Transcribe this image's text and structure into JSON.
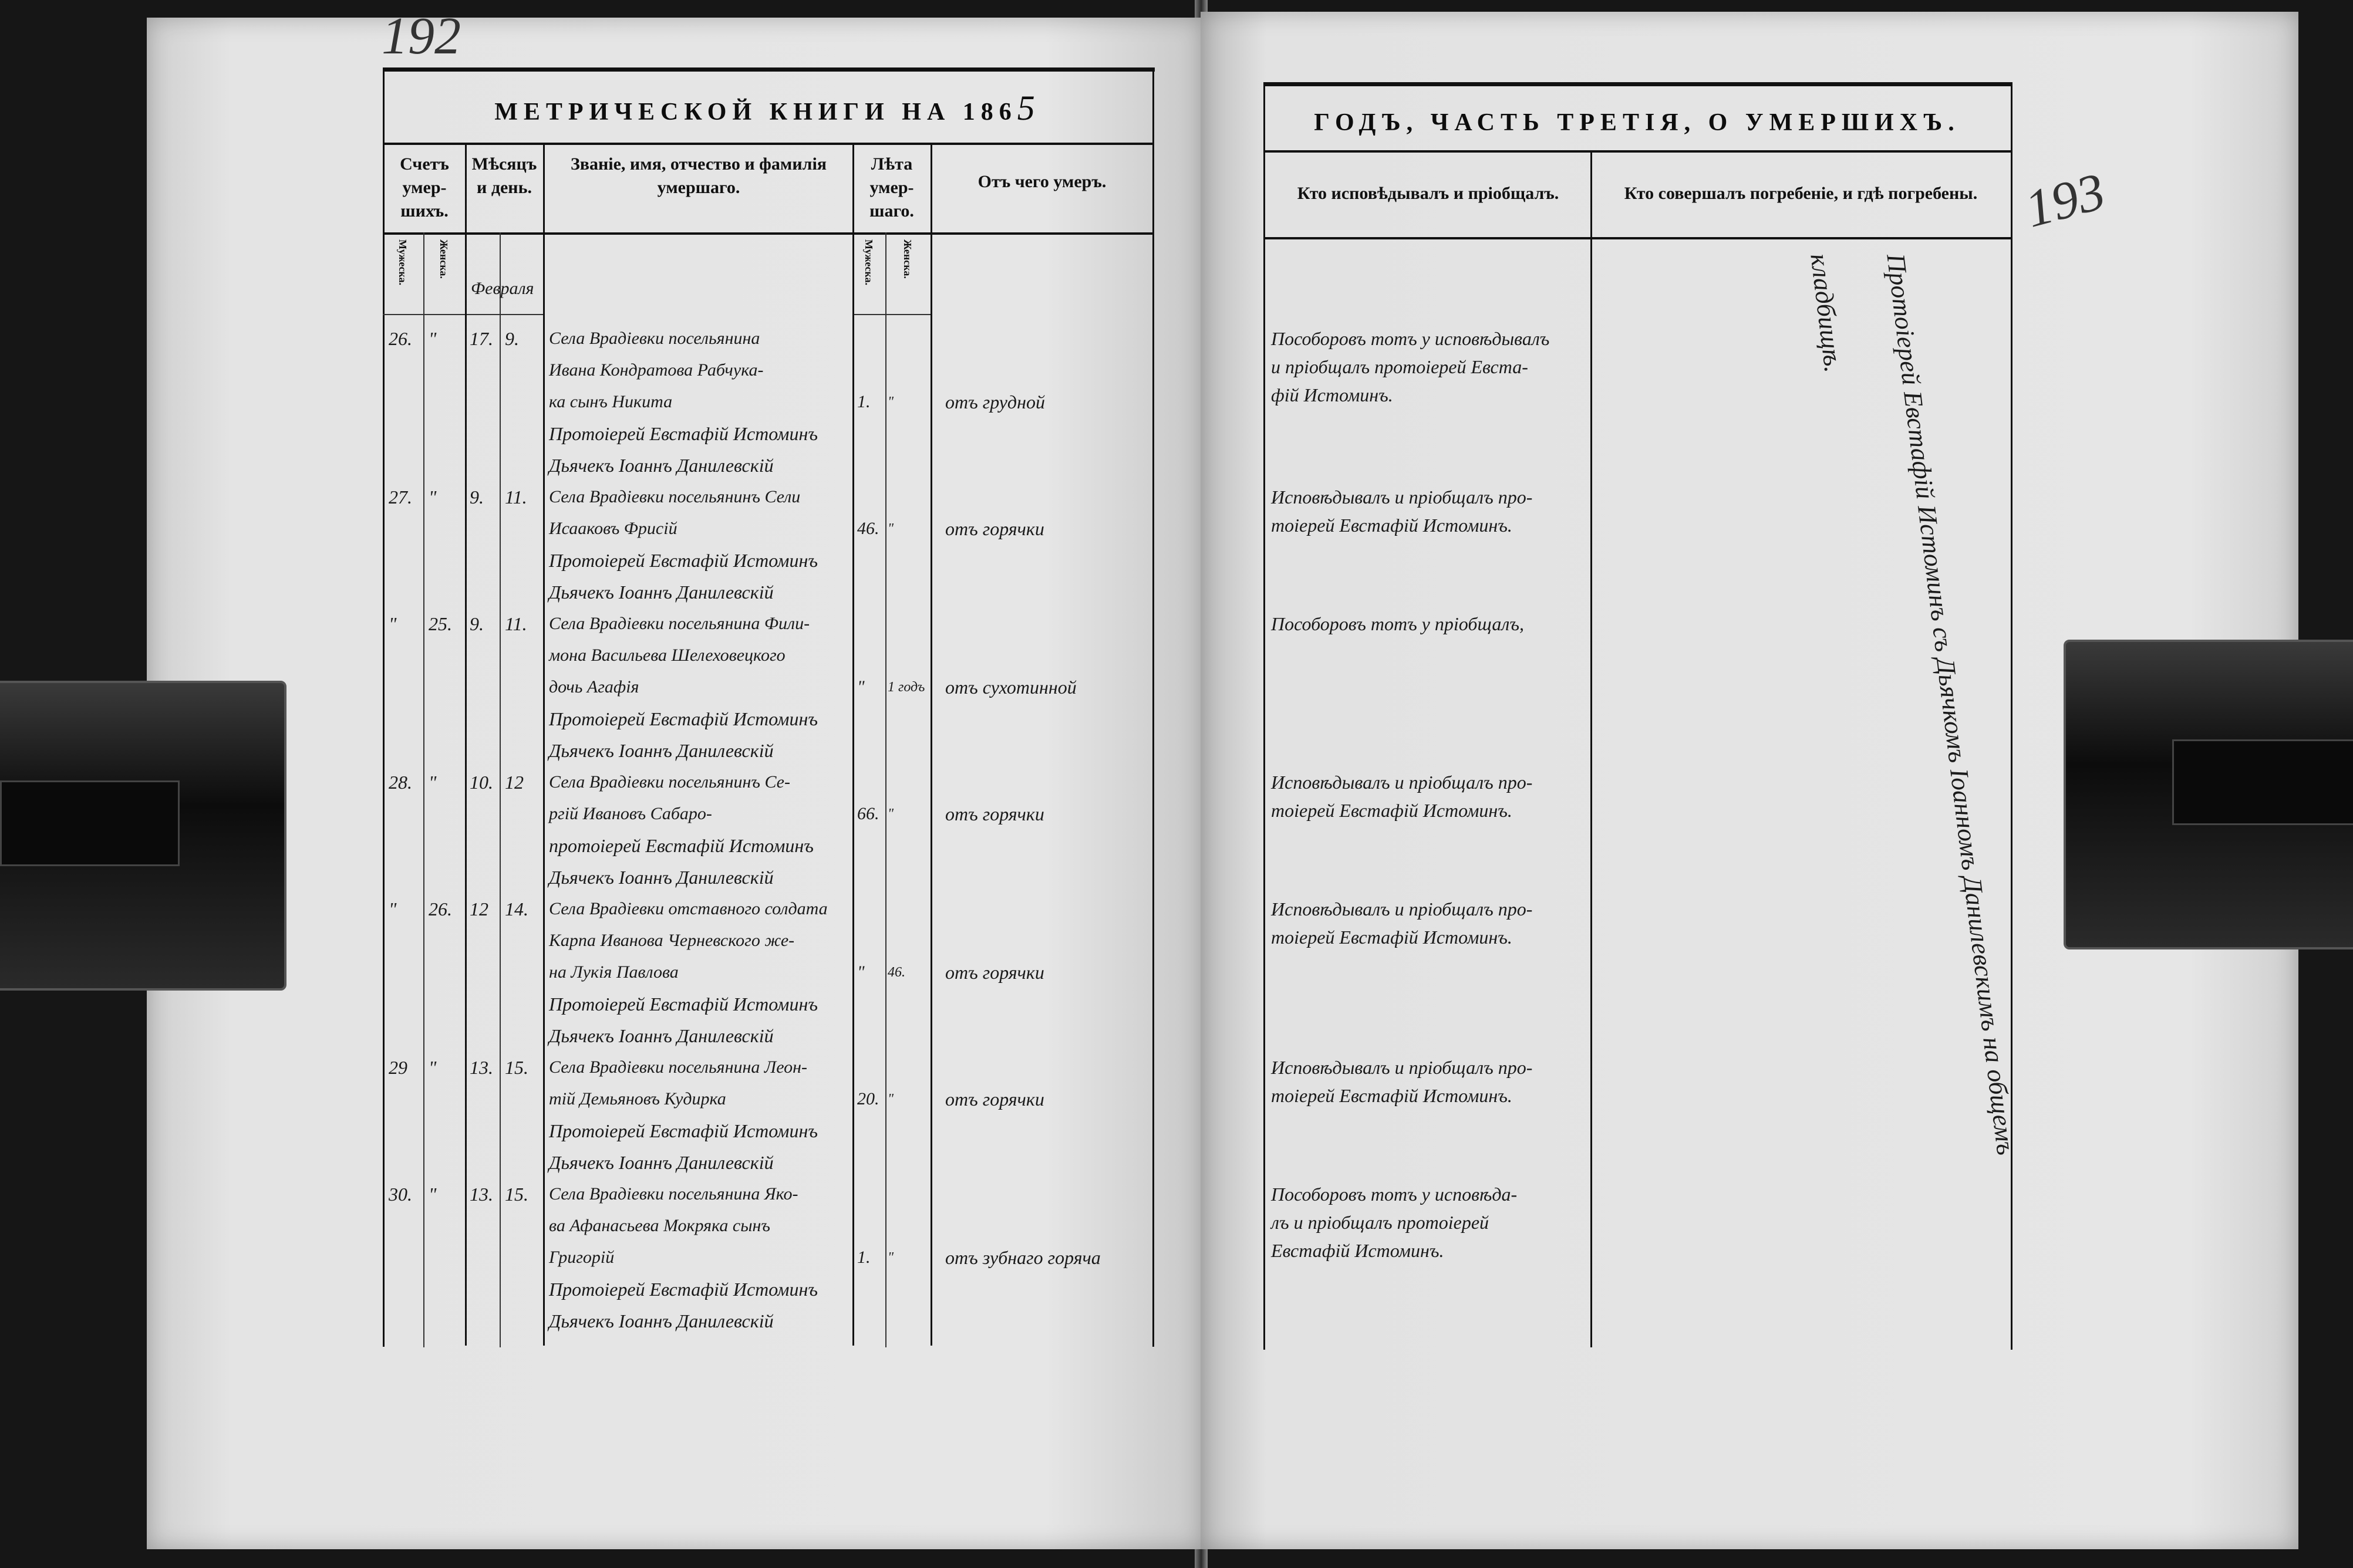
{
  "left_page": {
    "page_number": "192",
    "title": "МЕТРИЧЕСКОЙ КНИГИ НА 186",
    "year_handwritten": "5",
    "headers": {
      "count": "Счетъ умер- шихъ.",
      "month_day": "Мѣсяцъ и день.",
      "name": "Званіе, имя, отчество и фамилія умершаго.",
      "age": "Лѣта умер- шаго.",
      "cause": "Отъ чего умеръ."
    },
    "subheaders": {
      "male": "Мужеска.",
      "female": "Женска.",
      "age_male": "Мужеска.",
      "age_female": "Женска."
    },
    "month": "Февраля",
    "entries": [
      {
        "male": "26.",
        "female": "\"",
        "death_day": "17.",
        "burial_day": "9.",
        "name_lines": [
          "Села Врадіевки посельянина",
          "Ивана Кондратова Рабчука-",
          "ка сынъ Никита"
        ],
        "age_male": "1.",
        "age_female": "\"",
        "cause": "отъ грудной",
        "clergy_lines": [
          "Протоіерей Евстафій Истоминъ",
          "Дьячекъ Іоаннъ Данилевскій"
        ]
      },
      {
        "male": "27.",
        "female": "\"",
        "death_day": "9.",
        "burial_day": "11.",
        "name_lines": [
          "Села Врадіевки посельянинъ Сели",
          "Исааковъ Фрисій"
        ],
        "age_male": "46.",
        "age_female": "\"",
        "cause": "отъ горячки",
        "clergy_lines": [
          "Протоіерей Евстафій Истоминъ",
          "Дьячекъ Іоаннъ Данилевскій"
        ]
      },
      {
        "male": "\"",
        "female": "25.",
        "death_day": "9.",
        "burial_day": "11.",
        "name_lines": [
          "Села Врадіевки посельянина Фили-",
          "мона Васильева Шелеховецкого",
          "дочь Агафія"
        ],
        "age_male": "\"",
        "age_female": "1 годъ",
        "cause": "отъ сухотинной",
        "clergy_lines": [
          "Протоіерей Евстафій Истоминъ",
          "Дьячекъ Іоаннъ Данилевскій"
        ]
      },
      {
        "male": "28.",
        "female": "\"",
        "death_day": "10.",
        "burial_day": "12",
        "name_lines": [
          "Села Врадіевки посельянинъ Се-",
          "ргій Ивановъ Сабаро-"
        ],
        "age_male": "66.",
        "age_female": "\"",
        "cause": "отъ горячки",
        "clergy_lines": [
          "протоіерей Евстафій Истоминъ",
          "Дьячекъ Іоаннъ Данилевскій"
        ]
      },
      {
        "male": "\"",
        "female": "26.",
        "death_day": "12",
        "burial_day": "14.",
        "name_lines": [
          "Села Врадіевки отставного солдата",
          "Карпа Иванова Черневского же-",
          "на Лукія Павлова"
        ],
        "age_male": "\"",
        "age_female": "46.",
        "cause": "отъ горячки",
        "clergy_lines": [
          "Протоіерей Евстафій Истоминъ",
          "Дьячекъ Іоаннъ Данилевскій"
        ]
      },
      {
        "male": "29",
        "female": "\"",
        "death_day": "13.",
        "burial_day": "15.",
        "name_lines": [
          "Села Врадіевки посельянина Леон-",
          "тій Демьяновъ Кудирка"
        ],
        "age_male": "20.",
        "age_female": "\"",
        "cause": "отъ горячки",
        "clergy_lines": [
          "Протоіерей Евстафій Истоминъ",
          "Дьячекъ Іоаннъ Данилевскій"
        ]
      },
      {
        "male": "30.",
        "female": "\"",
        "death_day": "13.",
        "burial_day": "15.",
        "name_lines": [
          "Села Врадіевки посельянина Яко-",
          "ва Афанасьева Мокряка сынъ",
          "Григорій"
        ],
        "age_male": "1.",
        "age_female": "\"",
        "cause": "отъ зубнаго горяча",
        "clergy_lines": [
          "Протоіерей Евстафій Истоминъ",
          "Дьячекъ Іоаннъ Данилевскій"
        ]
      }
    ]
  },
  "right_page": {
    "page_number": "193",
    "title": "ГОДЪ, ЧАСТЬ ТРЕТІЯ, О УМЕРШИХЪ.",
    "headers": {
      "confessor": "Кто исповѣдывалъ и пріобщалъ.",
      "burial": "Кто совершалъ погребеніе, и гдѣ погребены."
    },
    "confessions": [
      [
        "Пособоровъ тотъ у исповѣдывалъ",
        "и пріобщалъ протоіерей Евста-",
        "фій Истоминъ."
      ],
      [
        "Исповѣдывалъ и пріобщалъ про-",
        "тоіерей Евстафій Истоминъ."
      ],
      [
        "Пособоровъ тотъ у пріобщалъ,"
      ],
      [
        "Исповѣдывалъ и пріобщалъ про-",
        "тоіерей Евстафій Истоминъ."
      ],
      [
        "Исповѣдывалъ и пріобщалъ про-",
        "тоіерей Евстафій Истоминъ."
      ],
      [
        "Исповѣдывалъ и пріобщалъ про-",
        "тоіерей Евстафій Истоминъ."
      ],
      [
        "Пособоровъ тотъ у исповѣда-",
        "лъ и пріобщалъ протоіерей",
        "Евстафій Истоминъ."
      ]
    ],
    "burial_text": [
      "Протоіерей Евстафій Истоминъ съ Дьячкомъ Іоанномъ Данилевскимъ на общемъ",
      "кладбищѣ."
    ]
  }
}
